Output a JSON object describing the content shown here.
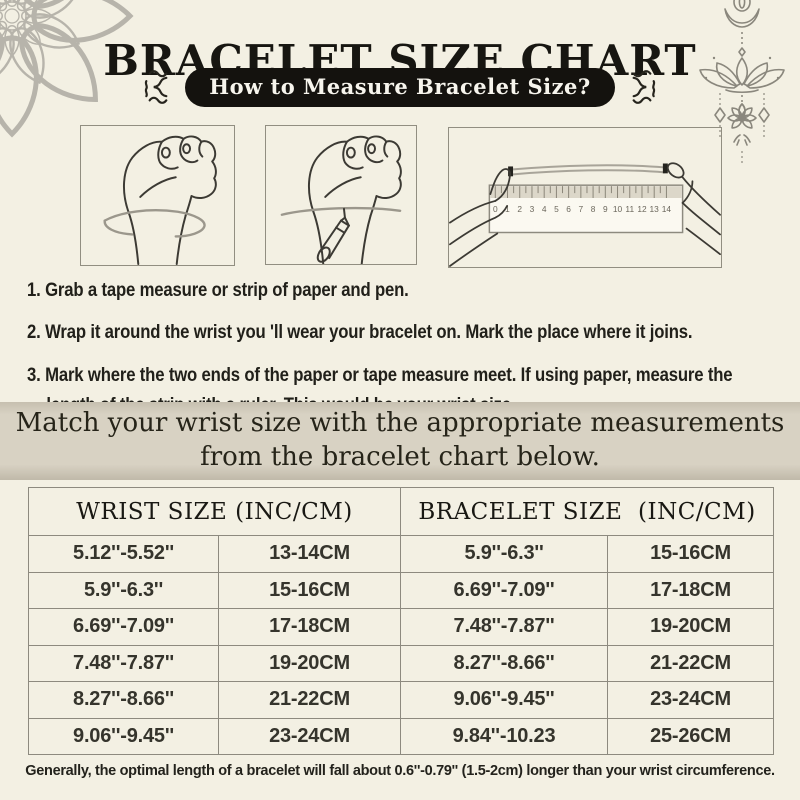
{
  "page": {
    "title": "BRACELET SIZE CHART",
    "banner": "How to Measure Bracelet Size?"
  },
  "steps": [
    {
      "num": "1.",
      "text": "Grab a tape measure or strip of paper and pen."
    },
    {
      "num": "2.",
      "text": "Wrap it around the wrist you 'll wear your bracelet on. Mark the place where it joins."
    },
    {
      "num": "3.",
      "text": "Mark where the two ends of the paper or tape measure meet. If using paper, measure the length of the strip with a ruler. This would be your wrist size."
    }
  ],
  "match_banner": {
    "line1": "Match your wrist size with the appropriate measurements",
    "line2": "from the bracelet chart below."
  },
  "size_table": {
    "headers": [
      "WRIST SIZE (INC/CM)",
      "BRACELET SIZE  (INC/CM)"
    ],
    "rows": [
      [
        "5.12''-5.52''",
        "13-14CM",
        "5.9''-6.3''",
        "15-16CM"
      ],
      [
        "5.9''-6.3''",
        "15-16CM",
        "6.69''-7.09''",
        "17-18CM"
      ],
      [
        "6.69''-7.09''",
        "17-18CM",
        "7.48''-7.87''",
        "19-20CM"
      ],
      [
        "7.48''-7.87''",
        "19-20CM",
        "8.27''-8.66''",
        "21-22CM"
      ],
      [
        "8.27''-8.66''",
        "21-22CM",
        "9.06''-9.45''",
        "23-24CM"
      ],
      [
        "9.06''-9.45''",
        "23-24CM",
        "9.84''-10.23",
        "25-26CM"
      ]
    ]
  },
  "ruler": {
    "numbers": [
      "0",
      "1",
      "2",
      "3",
      "4",
      "5",
      "6",
      "7",
      "8",
      "9",
      "10",
      "11",
      "12",
      "13",
      "14"
    ]
  },
  "footnote": "Generally, the optimal length of a bracelet will fall about 0.6''-0.79'' (1.5-2cm) longer than your wrist circumference.",
  "colors": {
    "background": "#f3f0e3",
    "band": "#d8d2c3",
    "line": "#8d8a7f",
    "ink": "#1d1c17",
    "pill": "#14120e",
    "ornament": "#8a877d",
    "mandala": "#b7b4ab"
  }
}
